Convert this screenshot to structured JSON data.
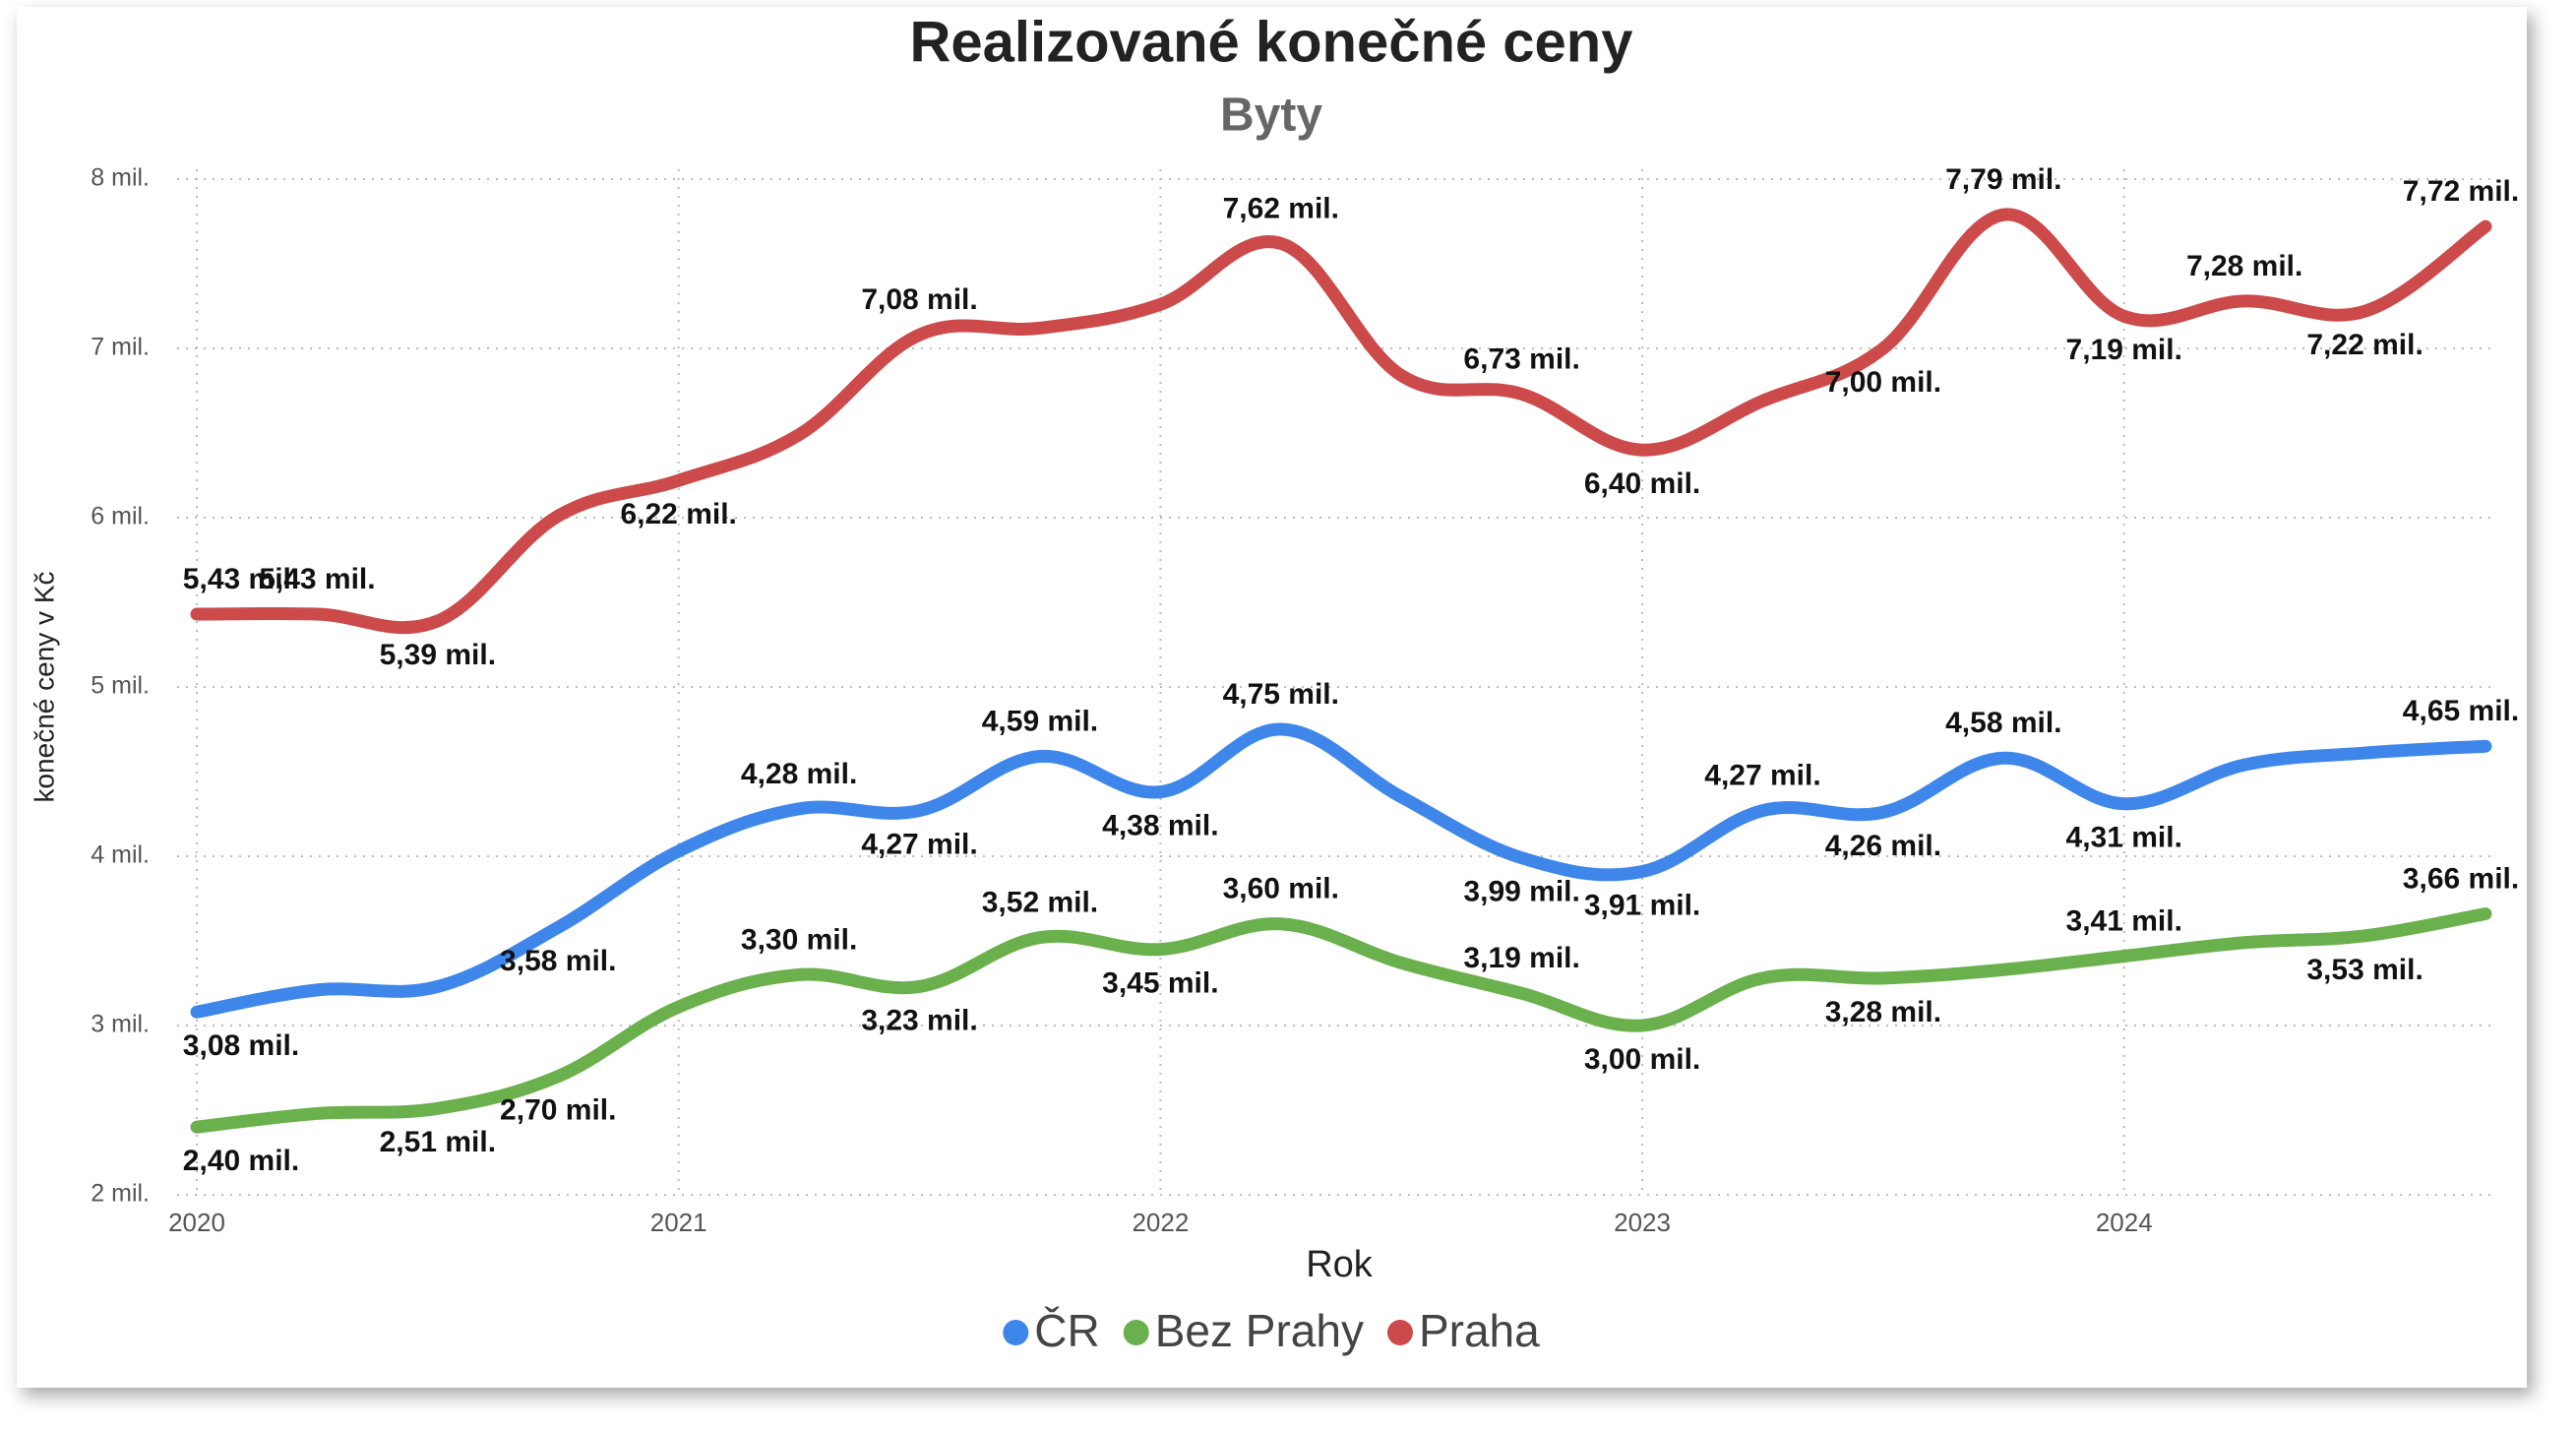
{
  "chart_data": {
    "type": "line",
    "title": "Realizované konečné ceny",
    "subtitle": "Byty",
    "x_label": "Rok",
    "y_label": "konečné ceny v Kč",
    "categories": [
      "2020",
      null,
      null,
      null,
      "2021",
      null,
      null,
      null,
      "2022",
      null,
      null,
      null,
      "2023",
      null,
      null,
      null,
      "2024",
      null,
      null,
      null
    ],
    "ylim": [
      2,
      8
    ],
    "yticks": [
      {
        "value": 2,
        "label": "2 mil."
      },
      {
        "value": 3,
        "label": "3 mil."
      },
      {
        "value": 4,
        "label": "4 mil."
      },
      {
        "value": 5,
        "label": "5 mil."
      },
      {
        "value": 6,
        "label": "6 mil."
      },
      {
        "value": 7,
        "label": "7 mil."
      },
      {
        "value": 8,
        "label": "8 mil."
      }
    ],
    "grid": true,
    "legend": "bottom",
    "series": [
      {
        "name": "ČR",
        "color": "#3f86ea",
        "values": [
          3.08,
          3.21,
          3.23,
          3.58,
          4.03,
          4.28,
          4.27,
          4.59,
          4.38,
          4.75,
          4.35,
          3.99,
          3.91,
          4.27,
          4.26,
          4.58,
          4.31,
          4.54,
          4.61,
          4.65
        ],
        "value_labels": [
          "3,08 mil.",
          null,
          null,
          "3,58 mil.",
          null,
          "4,28 mil.",
          "4,27 mil.",
          "4,59 mil.",
          "4,38 mil.",
          "4,75 mil.",
          null,
          "3,99 mil.",
          "3,91 mil.",
          "4,27 mil.",
          "4,26 mil.",
          "4,58 mil.",
          "4,31 mil.",
          null,
          null,
          "4,65 mil."
        ]
      },
      {
        "name": "Bez Prahy",
        "color": "#6ab04c",
        "values": [
          2.4,
          2.48,
          2.51,
          2.7,
          3.11,
          3.3,
          3.23,
          3.52,
          3.45,
          3.6,
          3.37,
          3.19,
          3.0,
          3.28,
          3.28,
          3.33,
          3.41,
          3.49,
          3.53,
          3.66
        ],
        "value_labels": [
          "2,40 mil.",
          null,
          "2,51 mil.",
          "2,70 mil.",
          null,
          "3,30 mil.",
          "3,23 mil.",
          "3,52 mil.",
          "3,45 mil.",
          "3,60 mil.",
          null,
          "3,19 mil.",
          "3,00 mil.",
          null,
          "3,28 mil.",
          null,
          "3,41 mil.",
          null,
          "3,53 mil.",
          "3,66 mil."
        ]
      },
      {
        "name": "Praha",
        "color": "#cc4a4a",
        "values": [
          5.43,
          5.43,
          5.39,
          6.01,
          6.22,
          6.49,
          7.08,
          7.12,
          7.26,
          7.62,
          6.84,
          6.73,
          6.4,
          6.69,
          7.0,
          7.79,
          7.19,
          7.28,
          7.22,
          7.72
        ],
        "value_labels": [
          "5,43 mil.",
          "5,43 mil.",
          "5,39 mil.",
          null,
          "6,22 mil.",
          null,
          "7,08 mil.",
          null,
          null,
          "7,62 mil.",
          null,
          "6,73 mil.",
          "6,40 mil.",
          null,
          "7,00 mil.",
          "7,79 mil.",
          "7,19 mil.",
          "7,28 mil.",
          "7,22 mil.",
          "7,72 mil."
        ]
      }
    ]
  }
}
